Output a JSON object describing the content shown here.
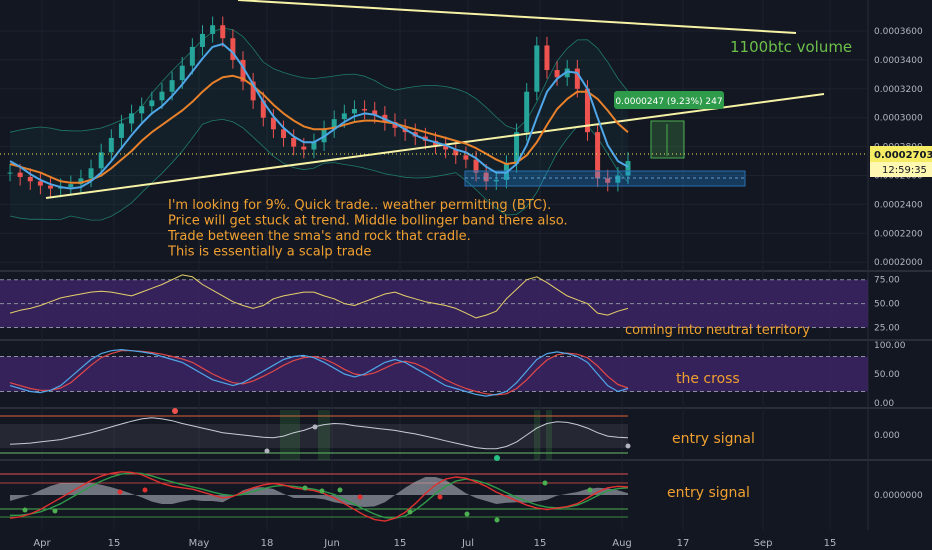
{
  "chart_data": {
    "type": "line",
    "title": "",
    "x_ticks": [
      "Apr",
      "15",
      "May",
      "18",
      "Jun",
      "15",
      "Jul",
      "15",
      "Aug",
      "17",
      "Sep",
      "15"
    ],
    "main_pane": {
      "y_ticks": [
        "0.0003600",
        "0.0003400",
        "0.0003200",
        "0.0003000",
        "0.0002800",
        "0.0002600",
        "0.0002400",
        "0.0002200",
        "0.0002000"
      ],
      "ylim": [
        0.000196,
        0.000378
      ],
      "price_label": "0.0002703",
      "countdown_label": "12:59:35",
      "target_label": "0.0000247 (9.23%) 247",
      "annotation_volume": "1100btc volume",
      "notes": [
        "I'm looking for 9%. Quick trade.. weather permitting (BTC).",
        "Price will get stuck at trend. Middle bollinger band there also.",
        "Trade between the sma's and rock that cradle.",
        "This is essentially a scalp trade"
      ],
      "close_prices": [
        0.000262,
        0.000259,
        0.000256,
        0.000253,
        0.000251,
        0.000252,
        0.000254,
        0.000258,
        0.000265,
        0.000276,
        0.000286,
        0.000296,
        0.000303,
        0.000308,
        0.000312,
        0.000318,
        0.000326,
        0.000336,
        0.000349,
        0.000358,
        0.000364,
        0.000355,
        0.00034,
        0.000325,
        0.000312,
        0.0003,
        0.000292,
        0.000286,
        0.00028,
        0.000278,
        0.000283,
        0.000292,
        0.000299,
        0.000303,
        0.000306,
        0.000305,
        0.000302,
        0.000297,
        0.000293,
        0.00029,
        0.000287,
        0.000284,
        0.000281,
        0.000278,
        0.000274,
        0.000271,
        0.000262,
        0.000256,
        0.000257,
        0.000268,
        0.00029,
        0.000318,
        0.00035,
        0.000333,
        0.000328,
        0.000334,
        0.00032,
        0.00029,
        0.000258,
        0.000255,
        0.00026,
        0.00027
      ],
      "sma_fast": [
        0.00027,
        0.000266,
        0.000261,
        0.000257,
        0.000254,
        0.000252,
        0.000251,
        0.000252,
        0.000256,
        0.000262,
        0.00027,
        0.000279,
        0.000288,
        0.000296,
        0.000303,
        0.000308,
        0.000315,
        0.000323,
        0.000332,
        0.000341,
        0.000349,
        0.000351,
        0.000345,
        0.000335,
        0.000323,
        0.000311,
        0.000301,
        0.000293,
        0.000287,
        0.000283,
        0.000283,
        0.000287,
        0.000292,
        0.000297,
        0.000301,
        0.000303,
        0.000302,
        0.000299,
        0.000296,
        0.000292,
        0.000288,
        0.000285,
        0.000283,
        0.000281,
        0.000278,
        0.000276,
        0.000272,
        0.000266,
        0.000262,
        0.000262,
        0.000268,
        0.000281,
        0.0003,
        0.000318,
        0.000327,
        0.000332,
        0.000331,
        0.00032,
        0.0003,
        0.000281,
        0.00027,
        0.000266
      ],
      "sma_slow": [
        0.000268,
        0.000266,
        0.000264,
        0.000262,
        0.000259,
        0.000256,
        0.000255,
        0.000255,
        0.000257,
        0.00026,
        0.000265,
        0.000271,
        0.000277,
        0.000284,
        0.00029,
        0.000295,
        0.0003,
        0.000305,
        0.000311,
        0.000318,
        0.000324,
        0.000328,
        0.000329,
        0.000327,
        0.000322,
        0.000316,
        0.000309,
        0.000303,
        0.000298,
        0.000294,
        0.000292,
        0.000292,
        0.000293,
        0.000295,
        0.000297,
        0.000298,
        0.000298,
        0.000297,
        0.000296,
        0.000294,
        0.000292,
        0.00029,
        0.000288,
        0.000286,
        0.000284,
        0.000282,
        0.000279,
        0.000275,
        0.000271,
        0.000268,
        0.000269,
        0.000274,
        0.000283,
        0.000295,
        0.000306,
        0.000313,
        0.000318,
        0.000318,
        0.000313,
        0.000305,
        0.000296,
        0.00029
      ]
    },
    "rsi_pane": {
      "y_ticks": [
        "75.00",
        "50.00",
        "25.00"
      ],
      "ylim": [
        14,
        82
      ],
      "annotation": "coming into neutral territory",
      "values": [
        40,
        43,
        45,
        48,
        52,
        56,
        58,
        60,
        62,
        63,
        62,
        60,
        58,
        62,
        66,
        70,
        75,
        80,
        78,
        70,
        64,
        58,
        52,
        48,
        45,
        48,
        55,
        58,
        60,
        62,
        62,
        58,
        55,
        50,
        48,
        52,
        56,
        60,
        62,
        58,
        55,
        52,
        50,
        48,
        45,
        40,
        35,
        38,
        42,
        55,
        65,
        75,
        78,
        72,
        65,
        58,
        54,
        50,
        40,
        38,
        42,
        45
      ]
    },
    "stoch_pane": {
      "y_ticks": [
        "100.00",
        "50.00",
        "0.00"
      ],
      "ylim": [
        -5,
        105
      ],
      "annotation": "the cross",
      "k": [
        30,
        25,
        20,
        18,
        22,
        30,
        45,
        60,
        75,
        85,
        90,
        92,
        90,
        88,
        85,
        80,
        75,
        70,
        60,
        50,
        40,
        35,
        30,
        35,
        45,
        55,
        65,
        75,
        80,
        82,
        78,
        70,
        60,
        50,
        45,
        50,
        60,
        70,
        75,
        70,
        60,
        50,
        40,
        30,
        25,
        20,
        15,
        12,
        15,
        20,
        35,
        55,
        75,
        85,
        88,
        85,
        80,
        70,
        50,
        30,
        20,
        25
      ],
      "d": [
        35,
        30,
        25,
        22,
        22,
        26,
        35,
        50,
        65,
        78,
        85,
        90,
        90,
        89,
        87,
        84,
        80,
        76,
        70,
        60,
        50,
        42,
        35,
        33,
        38,
        46,
        55,
        65,
        73,
        78,
        80,
        76,
        68,
        58,
        50,
        48,
        52,
        60,
        68,
        72,
        68,
        60,
        50,
        40,
        32,
        25,
        20,
        16,
        14,
        16,
        25,
        40,
        58,
        74,
        83,
        86,
        84,
        78,
        64,
        46,
        32,
        26
      ]
    },
    "osc1_pane": {
      "y_ticks": [
        "0.000"
      ],
      "ylim": [
        -1,
        1
      ],
      "annotation": "entry signal",
      "values": [
        -0.4,
        -0.38,
        -0.35,
        -0.3,
        -0.25,
        -0.2,
        -0.1,
        0.0,
        0.1,
        0.22,
        0.35,
        0.48,
        0.6,
        0.7,
        0.75,
        0.7,
        0.62,
        0.5,
        0.4,
        0.3,
        0.2,
        0.1,
        0.05,
        0.0,
        -0.05,
        -0.1,
        -0.12,
        -0.05,
        0.1,
        0.2,
        0.35,
        0.45,
        0.5,
        0.48,
        0.4,
        0.35,
        0.3,
        0.25,
        0.2,
        0.12,
        0.05,
        -0.05,
        -0.15,
        -0.25,
        -0.35,
        -0.45,
        -0.55,
        -0.6,
        -0.6,
        -0.5,
        -0.3,
        0.0,
        0.3,
        0.5,
        0.58,
        0.55,
        0.45,
        0.3,
        0.1,
        -0.05,
        -0.1,
        -0.12
      ]
    },
    "osc2_pane": {
      "y_ticks": [
        "0.0000000"
      ],
      "ylim": [
        -1,
        1
      ],
      "annotation": "entry signal",
      "fast": [
        -0.8,
        -0.75,
        -0.65,
        -0.5,
        -0.3,
        -0.1,
        0.1,
        0.3,
        0.5,
        0.65,
        0.75,
        0.8,
        0.78,
        0.7,
        0.55,
        0.4,
        0.3,
        0.25,
        0.2,
        0.1,
        0.0,
        -0.1,
        -0.05,
        0.1,
        0.25,
        0.35,
        0.4,
        0.35,
        0.25,
        0.2,
        0.15,
        0.05,
        -0.1,
        -0.3,
        -0.5,
        -0.7,
        -0.85,
        -0.9,
        -0.8,
        -0.6,
        -0.3,
        0.05,
        0.35,
        0.55,
        0.62,
        0.58,
        0.45,
        0.3,
        0.1,
        -0.05,
        -0.2,
        -0.35,
        -0.45,
        -0.5,
        -0.45,
        -0.4,
        -0.3,
        -0.1,
        0.1,
        0.25,
        0.3,
        0.28
      ],
      "slow": [
        -0.7,
        -0.7,
        -0.65,
        -0.58,
        -0.45,
        -0.3,
        -0.1,
        0.1,
        0.3,
        0.48,
        0.62,
        0.72,
        0.76,
        0.74,
        0.66,
        0.55,
        0.45,
        0.36,
        0.28,
        0.2,
        0.1,
        0.02,
        -0.02,
        0.02,
        0.12,
        0.22,
        0.3,
        0.33,
        0.3,
        0.25,
        0.2,
        0.12,
        0.02,
        -0.15,
        -0.32,
        -0.5,
        -0.66,
        -0.78,
        -0.8,
        -0.72,
        -0.52,
        -0.25,
        0.05,
        0.3,
        0.48,
        0.55,
        0.5,
        0.4,
        0.25,
        0.08,
        -0.08,
        -0.22,
        -0.34,
        -0.42,
        -0.44,
        -0.42,
        -0.35,
        -0.2,
        -0.02,
        0.14,
        0.22,
        0.25
      ]
    },
    "colors": {
      "background": "#131722",
      "sma_fast": "#4fa7e8",
      "sma_slow": "#e8812a",
      "trend_line": "#f7f3a6",
      "annotation_text": "#f0a030",
      "volume_text": "#6cc04a",
      "rsi_line": "#e5d06a",
      "rsi_band": "#3b2460",
      "stoch_k": "#4fa7e8",
      "stoch_d": "#e04848",
      "target_badge": "#2e9b4a",
      "price_badge": "#f5ec63"
    }
  }
}
